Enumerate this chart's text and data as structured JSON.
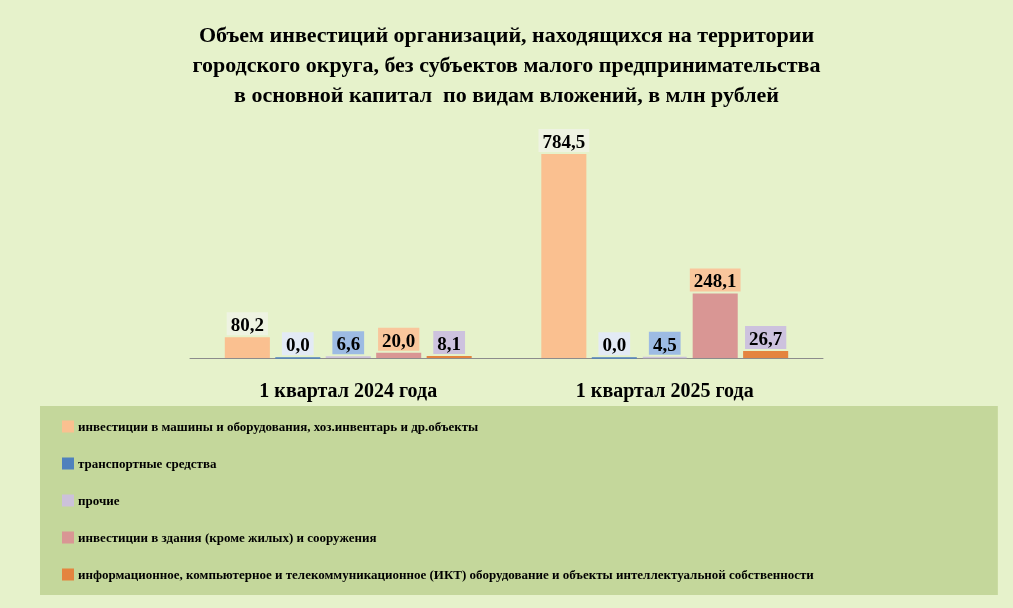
{
  "chart_data": {
    "type": "bar",
    "title": "Объем инвестиций организаций, находящихся на территории городского округа, без субъектов малого предпринимательства в основной капитал  по видам вложений, в млн рублей",
    "categories": [
      "1 квартал 2024 года",
      "1 квартал 2025 года"
    ],
    "series": [
      {
        "name": "инвестиции в машины и оборудования, хоз.инвентарь и др.объекты",
        "color": "#fac090",
        "values": [
          80.2,
          784.5
        ],
        "value_labels": [
          "80,2",
          "784,5"
        ]
      },
      {
        "name": "транспортные средства",
        "color": "#4f81bd",
        "values": [
          0.0,
          0.0
        ],
        "value_labels": [
          "0,0",
          "0,0"
        ]
      },
      {
        "name": "прочие",
        "color": "#ccc1da",
        "values": [
          6.6,
          4.5
        ],
        "value_labels": [
          "6,6",
          "4,5"
        ]
      },
      {
        "name": "инвестиции в здания (кроме жилых) и сооружения",
        "color": "#d99694",
        "values": [
          20.0,
          248.1
        ],
        "value_labels": [
          "20,0",
          "248,1"
        ]
      },
      {
        "name": "информационное, компьютерное и телекоммуникационное (ИКТ) оборудование и объекты интеллектуальной собственности",
        "color": "#e4843f",
        "values": [
          8.1,
          26.7
        ],
        "value_labels": [
          "8,1",
          "26,7"
        ]
      }
    ],
    "legend": "bottom",
    "tick_labels": "x"
  }
}
